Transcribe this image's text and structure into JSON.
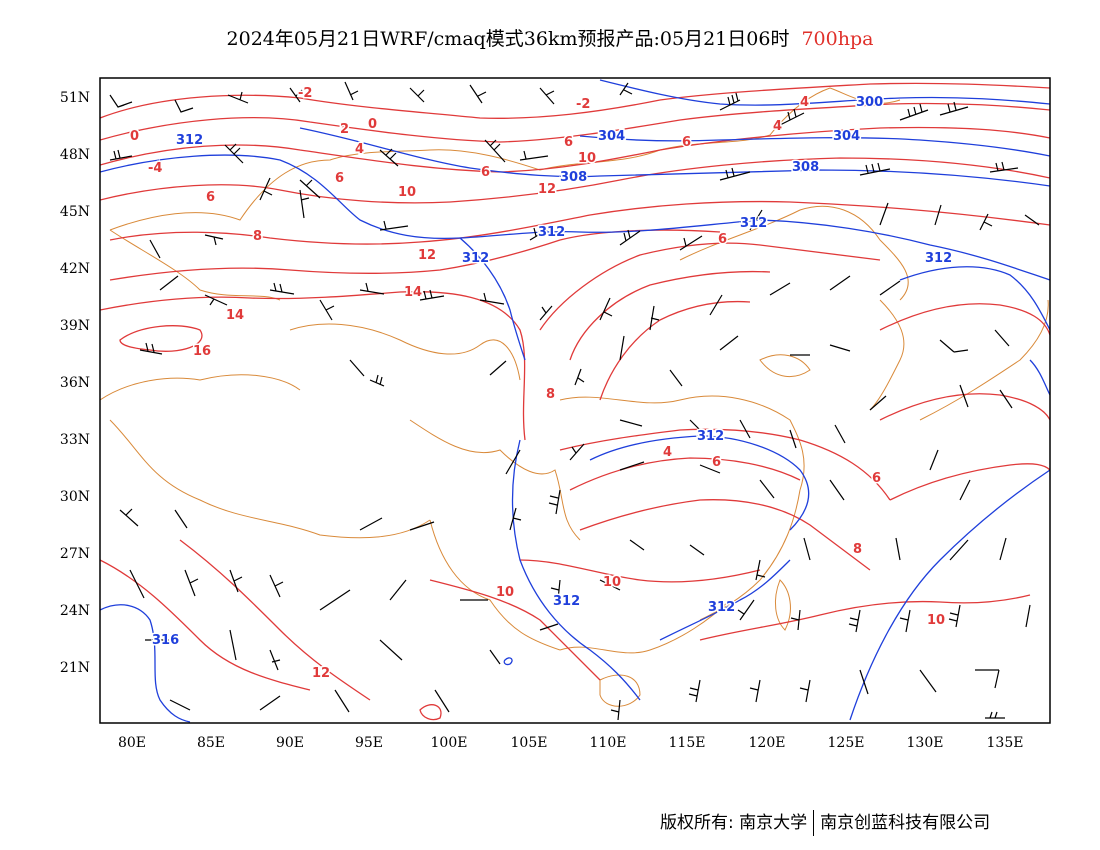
{
  "title": {
    "main": "2024年05月21日WRF/cmaq模式36km预报产品:05月21日06时",
    "level": "700hpa"
  },
  "map": {
    "lat_labels": [
      "51N",
      "48N",
      "45N",
      "42N",
      "39N",
      "36N",
      "33N",
      "30N",
      "27N",
      "24N",
      "21N"
    ],
    "lon_labels": [
      "80E",
      "85E",
      "90E",
      "95E",
      "100E",
      "105E",
      "110E",
      "115E",
      "120E",
      "125E",
      "130E",
      "135E"
    ],
    "extent": {
      "lon": [
        78,
        138
      ],
      "lat": [
        18,
        52
      ]
    },
    "colors": {
      "temperature": "#e03a3a",
      "height": "#1f3fdb",
      "border": "#d98a3a",
      "wind": "#000000",
      "frame": "#000000"
    }
  },
  "height_labels": [
    "300",
    "304",
    "308",
    "312",
    "312",
    "312",
    "312",
    "312",
    "312",
    "312",
    "316"
  ],
  "temp_labels": [
    "-2",
    "-2",
    "0",
    "0",
    "-4",
    "4",
    "4",
    "2",
    "4",
    "6",
    "6",
    "6",
    "6",
    "6",
    "6",
    "8",
    "8",
    "8",
    "10",
    "10",
    "10",
    "10",
    "10",
    "12",
    "12",
    "12",
    "14",
    "14",
    "16",
    "4",
    "6",
    "6"
  ],
  "footer": {
    "left": "版权所有: 南京大学",
    "right": "南京创蓝科技有限公司"
  }
}
